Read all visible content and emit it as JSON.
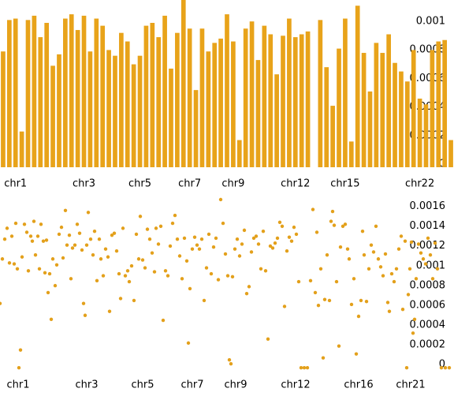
{
  "chart_data": [
    {
      "type": "bar",
      "color": "#e8a31a",
      "ylim": [
        0,
        0.00117
      ],
      "yticks": [
        0,
        0.0002,
        0.0004,
        0.0006,
        0.0008,
        0.001
      ],
      "categories": [
        null,
        null,
        "chr1",
        null,
        null,
        null,
        null,
        null,
        null,
        null,
        null,
        null,
        null,
        "chr3",
        null,
        null,
        null,
        null,
        null,
        null,
        null,
        null,
        "chr5",
        null,
        null,
        null,
        null,
        null,
        null,
        null,
        "chr7",
        null,
        null,
        null,
        null,
        null,
        null,
        "chr9",
        null,
        null,
        null,
        null,
        null,
        null,
        null,
        null,
        null,
        "chr12",
        null,
        null,
        null,
        null,
        null,
        null,
        null,
        "chr15",
        null,
        null,
        null,
        null,
        null,
        null,
        null,
        null,
        null,
        null,
        null,
        "chr22",
        null,
        null,
        null,
        null,
        null
      ],
      "values": [
        0.00081,
        0.00103,
        0.00104,
        0.00025,
        0.00103,
        0.00106,
        0.00091,
        0.00101,
        0.00071,
        0.00079,
        0.00104,
        0.00107,
        0.00096,
        0.00106,
        0.00081,
        0.00104,
        0.00099,
        0.00082,
        0.00078,
        0.00094,
        0.00088,
        0.00072,
        0.00078,
        0.00099,
        0.00101,
        0.00091,
        0.00106,
        0.00069,
        0.00094,
        0.0012,
        0.00097,
        0.00054,
        0.00097,
        0.00081,
        0.00087,
        0.0009,
        0.00107,
        0.00088,
        0.00019,
        0.00097,
        0.00102,
        0.00075,
        0.00099,
        0.00093,
        0.00065,
        0.00092,
        0.00104,
        0.00091,
        0.00093,
        0.00095,
        0,
        0.00103,
        0.0007,
        0.00043,
        0.00083,
        0.00104,
        0.00018,
        0.00113,
        0.0008,
        0.00053,
        0.00087,
        0.0008,
        0.00093,
        0.00073,
        0.00067,
        0.0006,
        0.00082,
        0.00048,
        0.00044,
        0.00082,
        0.00088,
        0.00089,
        0.00019
      ]
    },
    {
      "type": "scatter",
      "color": "#e3a01b",
      "xlim": [
        0,
        576
      ],
      "ylim": [
        -3e-05,
        0.0017
      ],
      "yticks": [
        0,
        0.0002,
        0.0004,
        0.0006,
        0.0008,
        0.001,
        0.0012,
        0.0014,
        0.0016
      ],
      "xticks": [
        {
          "value": 23,
          "label": "chr1"
        },
        {
          "value": 110,
          "label": "chr3"
        },
        {
          "value": 181,
          "label": "chr5"
        },
        {
          "value": 244,
          "label": "chr7"
        },
        {
          "value": 299,
          "label": "chr9"
        },
        {
          "value": 375,
          "label": "chr12"
        },
        {
          "value": 455,
          "label": "chr16"
        },
        {
          "value": 521,
          "label": "chr21"
        }
      ],
      "x": [
        0,
        3,
        6,
        9,
        12,
        15,
        18,
        20,
        22,
        24,
        26,
        28,
        31,
        34,
        36,
        39,
        41,
        43,
        45,
        48,
        50,
        52,
        55,
        57,
        59,
        61,
        63,
        65,
        67,
        70,
        72,
        75,
        78,
        80,
        83,
        85,
        88,
        90,
        92,
        95,
        98,
        101,
        104,
        106,
        108,
        110,
        112,
        115,
        118,
        120,
        123,
        126,
        128,
        131,
        134,
        137,
        139,
        142,
        145,
        148,
        151,
        153,
        156,
        159,
        162,
        164,
        167,
        170,
        173,
        176,
        178,
        181,
        184,
        187,
        190,
        193,
        196,
        198,
        201,
        204,
        207,
        210,
        213,
        216,
        219,
        222,
        225,
        228,
        231,
        234,
        237,
        239,
        241,
        244,
        247,
        250,
        253,
        256,
        259,
        262,
        265,
        268,
        271,
        274,
        277,
        280,
        283,
        286,
        289,
        291,
        293,
        295,
        298,
        301,
        304,
        307,
        310,
        313,
        316,
        319,
        322,
        325,
        328,
        331,
        334,
        337,
        340,
        343,
        346,
        349,
        352,
        355,
        358,
        361,
        364,
        367,
        370,
        373,
        376,
        379,
        382,
        386,
        390,
        394,
        397,
        400,
        402,
        404,
        407,
        410,
        412,
        415,
        418,
        420,
        422,
        424,
        427,
        430,
        432,
        435,
        438,
        441,
        443,
        446,
        449,
        452,
        455,
        458,
        460,
        462,
        465,
        468,
        471,
        474,
        477,
        480,
        483,
        486,
        489,
        492,
        494,
        497,
        500,
        503,
        506,
        509,
        511,
        514,
        516,
        518,
        520,
        522,
        524,
        526,
        528,
        531,
        534,
        537,
        540,
        543,
        546,
        549,
        552,
        555,
        560,
        565,
        570
      ],
      "values": [
        0.00065,
        0.0011,
        0.0013,
        0.00141,
        0.00106,
        0.00133,
        0.00105,
        0.00146,
        0.001,
        0,
        0.00018,
        0.00112,
        0.00145,
        0.00137,
        0.00098,
        0.00133,
        0.00128,
        0.00148,
        0.00114,
        0.00133,
        0.001,
        0.00145,
        0.00128,
        0.00096,
        0.00129,
        0.00076,
        0.00095,
        0.00049,
        0.0011,
        0.00083,
        0.00104,
        0.00135,
        0.00142,
        0.00111,
        0.00159,
        0.00124,
        0.00134,
        0.0009,
        0.00121,
        0.00124,
        0.00145,
        0.00136,
        0.00119,
        0.00065,
        0.00053,
        0.00124,
        0.00157,
        0.0013,
        0.00114,
        0.00138,
        0.00088,
        0.0013,
        0.0011,
        0.00093,
        0.0012,
        0.00112,
        0.00057,
        0.00134,
        0.00136,
        0.00118,
        0.00095,
        0.0007,
        0.00141,
        0.00093,
        0.00098,
        0.00087,
        0.00103,
        0.00068,
        0.00135,
        0.0011,
        0.00153,
        0.00109,
        0.00101,
        0.0014,
        0.0013,
        0.00116,
        0.00097,
        0.00141,
        0.00125,
        0.00143,
        0.00048,
        0.00098,
        0.00093,
        0.00123,
        0.00146,
        0.00154,
        0.0013,
        0.00113,
        0.0009,
        0.00131,
        0.00108,
        0.00025,
        0.0008,
        0.0012,
        0.00132,
        0.00124,
        0.0012,
        0.0013,
        0.00068,
        0.00101,
        0.00135,
        0.00095,
        0.00122,
        0.00131,
        0.00089,
        0.0017,
        0.00146,
        0.00115,
        0.00093,
        8e-05,
        4e-05,
        0.00092,
        0.0012,
        0.0013,
        0.00113,
        0.00125,
        0.00139,
        0.00075,
        0.00082,
        0.00117,
        0.00131,
        0.00133,
        0.00125,
        0.001,
        0.00138,
        0.00098,
        0.00029,
        0.00123,
        0.00121,
        0.00126,
        0.00131,
        0.00147,
        0.00143,
        0.00062,
        0.00118,
        0.00132,
        0.00128,
        0.00142,
        0.00135,
        0.00087,
        0,
        0,
        0,
        0.00088,
        0.0016,
        0.00076,
        0.00137,
        0.00063,
        0.001,
        0.0001,
        0.00069,
        0.00114,
        0.00068,
        0.00148,
        0.00158,
        0.00144,
        0.00087,
        0.00022,
        0.00122,
        0.00143,
        0.00145,
        0.0012,
        0.0011,
        0.00064,
        0.0009,
        0.00014,
        0.00052,
        0.00068,
        0.00138,
        0.00114,
        0.00067,
        0.001,
        0.00124,
        0.00117,
        0.00143,
        0.0011,
        0.00102,
        0.00093,
        0.00115,
        0.00066,
        0.00057,
        0.00095,
        0.00087,
        0.001,
        0.0012,
        0.00133,
        0.00059,
        0.00128,
        0,
        0.00074,
        0.001,
        0.00127,
        0.00035,
        0.00049,
        0.0009,
        0.00125,
        0.00116,
        0.0011,
        0.00105,
        0.00131,
        0.00114,
        0.0009,
        0.00126,
        0.001,
        0,
        0,
        0
      ]
    }
  ]
}
